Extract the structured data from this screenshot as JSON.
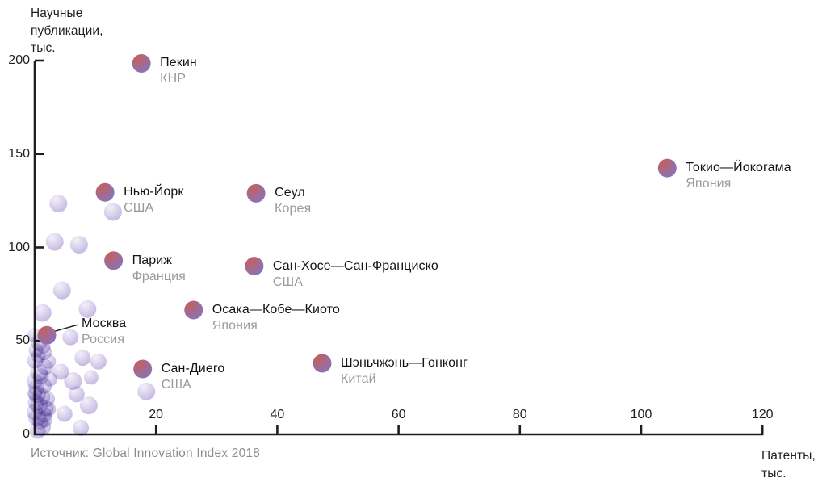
{
  "page": {
    "background": "#ffffff"
  },
  "chart_data": {
    "type": "scatter",
    "title": "",
    "ylabel": "Научные публикации, тыс.",
    "ylabel_lines": [
      "Научные",
      "публикации,",
      "тыс."
    ],
    "xlabel": "Патенты, тыс.",
    "xlabel_lines": [
      "Патенты,",
      "тыс."
    ],
    "source": "Источник: Global Innovation Index 2018",
    "xlim": [
      0,
      120
    ],
    "ylim": [
      0,
      200
    ],
    "x_ticks": [
      20,
      40,
      60,
      80,
      100,
      120
    ],
    "y_ticks": [
      0,
      50,
      100,
      150,
      200
    ],
    "grid": false,
    "legend": "none",
    "colors": {
      "axis": "#1f1f1f",
      "tick_label": "#1f1f1f",
      "city_label": "#141414",
      "country_label": "#9b9b9b",
      "source_text": "#8c8c8c",
      "bubble_dark_from": "#c4605a",
      "bubble_dark_to": "#8374c3",
      "bubble_light_from": "#f1edf9",
      "bubble_light_to": "#b1a2d7"
    },
    "labeled_points": [
      {
        "city": "Пекин",
        "country": "КНР",
        "x": 17.6,
        "y": 198.5
      },
      {
        "city": "Токио—Йокогама",
        "country": "Япония",
        "x": 104.3,
        "y": 142.5
      },
      {
        "city": "Нью-Йорк",
        "country": "США",
        "x": 11.6,
        "y": 129.5
      },
      {
        "city": "Сеул",
        "country": "Корея",
        "x": 36.5,
        "y": 129
      },
      {
        "city": "Париж",
        "country": "Франция",
        "x": 13,
        "y": 93
      },
      {
        "city": "Сан-Хосе—Сан-Франциско",
        "country": "США",
        "x": 36.2,
        "y": 90
      },
      {
        "city": "Осака—Кобе—Киото",
        "country": "Япония",
        "x": 26.2,
        "y": 66.5
      },
      {
        "city": "Москва",
        "country": "Россия",
        "x": 2,
        "y": 53,
        "callout": true
      },
      {
        "city": "Сан-Диего",
        "country": "США",
        "x": 17.8,
        "y": 35
      },
      {
        "city": "Шэньчжэнь—Гонконг",
        "country": "Китай",
        "x": 47.4,
        "y": 38
      }
    ],
    "background_points": [
      {
        "x": 3.9,
        "y": 123.5,
        "r": 11
      },
      {
        "x": 12.9,
        "y": 119,
        "r": 11
      },
      {
        "x": 3.3,
        "y": 103,
        "r": 11
      },
      {
        "x": 7.3,
        "y": 101.5,
        "r": 11
      },
      {
        "x": 4.5,
        "y": 77,
        "r": 11
      },
      {
        "x": 8.7,
        "y": 67,
        "r": 11
      },
      {
        "x": 1.3,
        "y": 65,
        "r": 11
      },
      {
        "x": 5.9,
        "y": 52,
        "r": 10
      },
      {
        "x": 7.9,
        "y": 41,
        "r": 10
      },
      {
        "x": 10.5,
        "y": 39,
        "r": 10
      },
      {
        "x": 4.3,
        "y": 33.5,
        "r": 10
      },
      {
        "x": 6.3,
        "y": 28.5,
        "r": 11
      },
      {
        "x": 9.3,
        "y": 30.5,
        "r": 9
      },
      {
        "x": 6.9,
        "y": 21.5,
        "r": 10
      },
      {
        "x": 8.9,
        "y": 15.5,
        "r": 11
      },
      {
        "x": 4.9,
        "y": 11,
        "r": 10
      },
      {
        "x": 7.6,
        "y": 3.5,
        "r": 10
      },
      {
        "x": 1.6,
        "y": 8,
        "r": 10
      },
      {
        "x": 18.4,
        "y": 23,
        "r": 11
      },
      {
        "x": 0.7,
        "y": 49,
        "r": 10
      },
      {
        "x": 1.5,
        "y": 44,
        "r": 10
      },
      {
        "x": 0.1,
        "y": 39.5,
        "r": 10
      },
      {
        "x": 1.7,
        "y": 36,
        "r": 10
      },
      {
        "x": 0.7,
        "y": 33,
        "r": 11
      },
      {
        "x": 0,
        "y": 28.5,
        "r": 10
      },
      {
        "x": 1.5,
        "y": 26,
        "r": 10
      },
      {
        "x": 0.4,
        "y": 21.5,
        "r": 11
      },
      {
        "x": 2,
        "y": 19,
        "r": 10
      },
      {
        "x": 0.7,
        "y": 15.5,
        "r": 11
      },
      {
        "x": 0,
        "y": 12,
        "r": 10
      },
      {
        "x": 1.5,
        "y": 10.5,
        "r": 10
      },
      {
        "x": 2.3,
        "y": 13.5,
        "r": 9
      },
      {
        "x": 0.9,
        "y": 7,
        "r": 10
      },
      {
        "x": 2.5,
        "y": 29.5,
        "r": 9
      },
      {
        "x": 0,
        "y": 22,
        "r": 9
      },
      {
        "x": 0,
        "y": 53,
        "r": 9
      },
      {
        "x": 2.3,
        "y": 39,
        "r": 9
      },
      {
        "x": 0.5,
        "y": 2,
        "r": 10
      },
      {
        "x": 1.2,
        "y": 4,
        "r": 11
      },
      {
        "x": 0.2,
        "y": 17,
        "r": 10
      },
      {
        "x": 1,
        "y": 31,
        "r": 10
      },
      {
        "x": 0.3,
        "y": 25,
        "r": 10
      },
      {
        "x": 1.8,
        "y": 14,
        "r": 10
      },
      {
        "x": 0.6,
        "y": 42,
        "r": 9
      },
      {
        "x": 1.1,
        "y": 20,
        "r": 11
      },
      {
        "x": 0.4,
        "y": 9,
        "r": 11
      },
      {
        "x": 1.4,
        "y": 47,
        "r": 9
      },
      {
        "x": 0.2,
        "y": 45,
        "r": 9
      }
    ]
  }
}
